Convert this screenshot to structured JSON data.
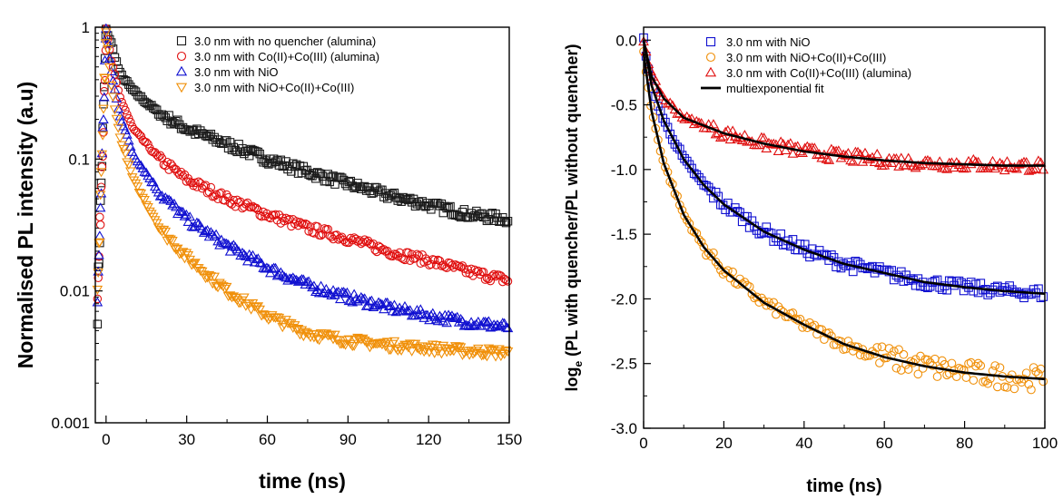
{
  "chart_data": [
    {
      "type": "scatter",
      "xlabel": "time (ns)",
      "ylabel": "Normalised PL intensity (a.u)",
      "xlim": [
        -4,
        150
      ],
      "ylim": [
        0.001,
        1
      ],
      "yscale": "log",
      "x_ticks": [
        0,
        30,
        60,
        90,
        120,
        150
      ],
      "x_tick_labels": [
        "0",
        "30",
        "60",
        "90",
        "120",
        "150"
      ],
      "y_ticks": [
        0.001,
        0.01,
        0.1,
        1
      ],
      "y_tick_labels": [
        "0.001",
        "0.01",
        "0.1",
        "1"
      ],
      "legend_position": "top-right",
      "series": [
        {
          "name": "3.0 nm with  no quencher (alumina)",
          "marker": "square",
          "color": "#1a1a1a",
          "x": [
            0,
            2,
            5,
            10,
            20,
            30,
            45,
            60,
            75,
            90,
            105,
            120,
            135,
            150
          ],
          "y": [
            0.95,
            0.75,
            0.45,
            0.33,
            0.22,
            0.17,
            0.13,
            0.1,
            0.08,
            0.065,
            0.053,
            0.045,
            0.038,
            0.035
          ]
        },
        {
          "name": "3.0 nm with Co(II)+Co(III) (alumina)",
          "marker": "circle",
          "color": "#e01010",
          "x": [
            0,
            2,
            5,
            10,
            20,
            30,
            45,
            60,
            75,
            90,
            105,
            120,
            135,
            150
          ],
          "y": [
            0.95,
            0.55,
            0.3,
            0.17,
            0.1,
            0.07,
            0.05,
            0.038,
            0.03,
            0.025,
            0.02,
            0.017,
            0.014,
            0.012
          ]
        },
        {
          "name": "3.0 nm with NiO",
          "marker": "triangle-up",
          "color": "#1010d0",
          "x": [
            0,
            2,
            5,
            10,
            20,
            30,
            45,
            60,
            75,
            90,
            105,
            120,
            135,
            150
          ],
          "y": [
            0.95,
            0.45,
            0.22,
            0.11,
            0.055,
            0.035,
            0.022,
            0.015,
            0.011,
            0.009,
            0.0075,
            0.0065,
            0.0058,
            0.0053
          ]
        },
        {
          "name": "3.0 nm with NiO+Co(II)+Co(III)",
          "marker": "triangle-down",
          "color": "#f0900a",
          "x": [
            0,
            2,
            5,
            10,
            20,
            30,
            45,
            60,
            75,
            90,
            105,
            120,
            135,
            150
          ],
          "y": [
            0.92,
            0.35,
            0.15,
            0.07,
            0.03,
            0.018,
            0.01,
            0.0065,
            0.0048,
            0.0042,
            0.0039,
            0.0037,
            0.0035,
            0.0034
          ]
        }
      ]
    },
    {
      "type": "scatter",
      "xlabel": "time (ns)",
      "ylabel": "log",
      "ylabel_sub": "e",
      "ylabel_rest": " (PL with quencher/PL without quencher)",
      "xlim": [
        0,
        100
      ],
      "ylim": [
        -3.0,
        0.1
      ],
      "x_ticks": [
        0,
        20,
        40,
        60,
        80,
        100
      ],
      "x_tick_labels": [
        "0",
        "20",
        "40",
        "60",
        "80",
        "100"
      ],
      "y_ticks": [
        0.0,
        -0.5,
        -1.0,
        -1.5,
        -2.0,
        -2.5,
        -3.0
      ],
      "y_tick_labels": [
        "0.0",
        "-0.5",
        "-1.0",
        "-1.5",
        "-2.0",
        "-2.5",
        "-3.0"
      ],
      "legend_position": "top-left",
      "series": [
        {
          "name": "3.0 nm with NiO",
          "marker": "square",
          "color": "#1010d0",
          "x": [
            0,
            2,
            5,
            10,
            15,
            20,
            30,
            40,
            50,
            60,
            70,
            80,
            90,
            100
          ],
          "y": [
            0.0,
            -0.35,
            -0.62,
            -0.92,
            -1.12,
            -1.27,
            -1.48,
            -1.62,
            -1.73,
            -1.8,
            -1.87,
            -1.91,
            -1.94,
            -1.96
          ]
        },
        {
          "name": "3.0 nm with NiO+Co(II)+Co(III)",
          "marker": "circle",
          "color": "#f0900a",
          "x": [
            0,
            2,
            5,
            10,
            15,
            20,
            30,
            40,
            50,
            60,
            70,
            80,
            90,
            100
          ],
          "y": [
            -0.1,
            -0.55,
            -0.95,
            -1.35,
            -1.6,
            -1.78,
            -2.03,
            -2.2,
            -2.35,
            -2.45,
            -2.52,
            -2.57,
            -2.6,
            -2.62
          ]
        },
        {
          "name": "3.0 nm with Co(II)+Co(III) (alumina)",
          "marker": "triangle-up",
          "color": "#e01010",
          "x": [
            0,
            2,
            5,
            10,
            15,
            20,
            30,
            40,
            50,
            60,
            70,
            80,
            90,
            100
          ],
          "y": [
            0.0,
            -0.28,
            -0.45,
            -0.6,
            -0.66,
            -0.72,
            -0.8,
            -0.86,
            -0.9,
            -0.93,
            -0.95,
            -0.96,
            -0.97,
            -0.97
          ]
        },
        {
          "name": "multiexponential fit",
          "marker": "line",
          "color": "#000000"
        }
      ]
    }
  ]
}
